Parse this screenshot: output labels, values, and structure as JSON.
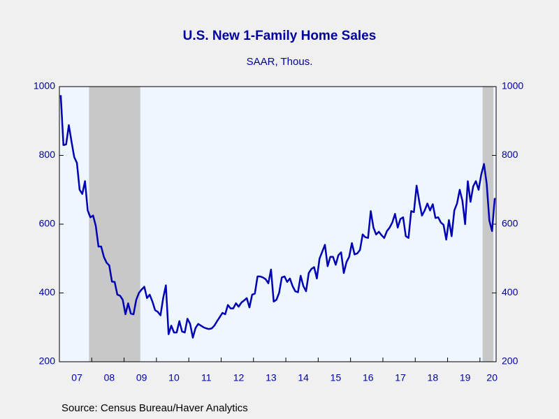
{
  "chart_data": {
    "type": "line",
    "title": "U.S. New 1-Family Home Sales",
    "subtitle": "SAAR, Thous.",
    "source": "Source:  Census Bureau/Haver Analytics",
    "categories": [
      null,
      null,
      null,
      null,
      null,
      null,
      "07",
      null,
      null,
      null,
      null,
      null,
      null,
      null,
      null,
      null,
      null,
      null,
      "08",
      null,
      null,
      null,
      null,
      null,
      null,
      null,
      null,
      null,
      null,
      null,
      "09",
      null,
      null,
      null,
      null,
      null,
      null,
      null,
      null,
      null,
      null,
      null,
      "10",
      null,
      null,
      null,
      null,
      null,
      null,
      null,
      null,
      null,
      null,
      null,
      "11",
      null,
      null,
      null,
      null,
      null,
      null,
      null,
      null,
      null,
      null,
      null,
      "12",
      null,
      null,
      null,
      null,
      null,
      null,
      null,
      null,
      null,
      null,
      null,
      "13",
      null,
      null,
      null,
      null,
      null,
      null,
      null,
      null,
      null,
      null,
      null,
      "14",
      null,
      null,
      null,
      null,
      null,
      null,
      null,
      null,
      null,
      null,
      null,
      "15",
      null,
      null,
      null,
      null,
      null,
      null,
      null,
      null,
      null,
      null,
      null,
      "16",
      null,
      null,
      null,
      null,
      null,
      null,
      null,
      null,
      null,
      null,
      null,
      "17",
      null,
      null,
      null,
      null,
      null,
      null,
      null,
      null,
      null,
      null,
      null,
      "18",
      null,
      null,
      null,
      null,
      null,
      null,
      null,
      null,
      null,
      null,
      null,
      "19",
      null,
      null,
      null,
      null,
      null,
      null,
      null,
      null,
      null,
      "20",
      null
    ],
    "series": [
      {
        "name": "New 1-Family Home Sales",
        "color": "#0000b4",
        "values": [
          975,
          830,
          832,
          888,
          840,
          795,
          778,
          700,
          688,
          725,
          640,
          620,
          625,
          595,
          535,
          535,
          505,
          488,
          480,
          433,
          432,
          395,
          392,
          380,
          338,
          370,
          340,
          338,
          380,
          400,
          410,
          418,
          385,
          395,
          375,
          350,
          345,
          335,
          385,
          422,
          280,
          305,
          285,
          285,
          318,
          288,
          285,
          325,
          310,
          270,
          298,
          310,
          305,
          300,
          297,
          295,
          297,
          305,
          318,
          330,
          342,
          338,
          365,
          355,
          355,
          370,
          360,
          372,
          378,
          385,
          358,
          395,
          398,
          448,
          448,
          445,
          440,
          428,
          468,
          375,
          380,
          400,
          445,
          448,
          432,
          442,
          420,
          405,
          402,
          450,
          420,
          405,
          458,
          470,
          475,
          442,
          500,
          520,
          540,
          478,
          505,
          505,
          482,
          510,
          518,
          458,
          490,
          505,
          545,
          512,
          515,
          525,
          570,
          562,
          560,
          638,
          590,
          570,
          578,
          568,
          560,
          580,
          590,
          605,
          630,
          590,
          615,
          620,
          565,
          560,
          638,
          635,
          712,
          665,
          625,
          640,
          660,
          640,
          658,
          618,
          620,
          605,
          598,
          555,
          612,
          565,
          640,
          660,
          700,
          668,
          600,
          725,
          665,
          710,
          725,
          700,
          745,
          775,
          718,
          610,
          580,
          676
        ]
      }
    ],
    "recessions": [
      [
        11,
        29
      ],
      [
        157,
        160
      ]
    ],
    "recession_color": "#c8c8c8",
    "ylim": [
      200,
      1000
    ],
    "yticks": [
      200,
      400,
      600,
      800,
      1000
    ],
    "y2lim": [
      200,
      1000
    ],
    "y2ticks": [
      200,
      400,
      600,
      800,
      1000
    ]
  }
}
